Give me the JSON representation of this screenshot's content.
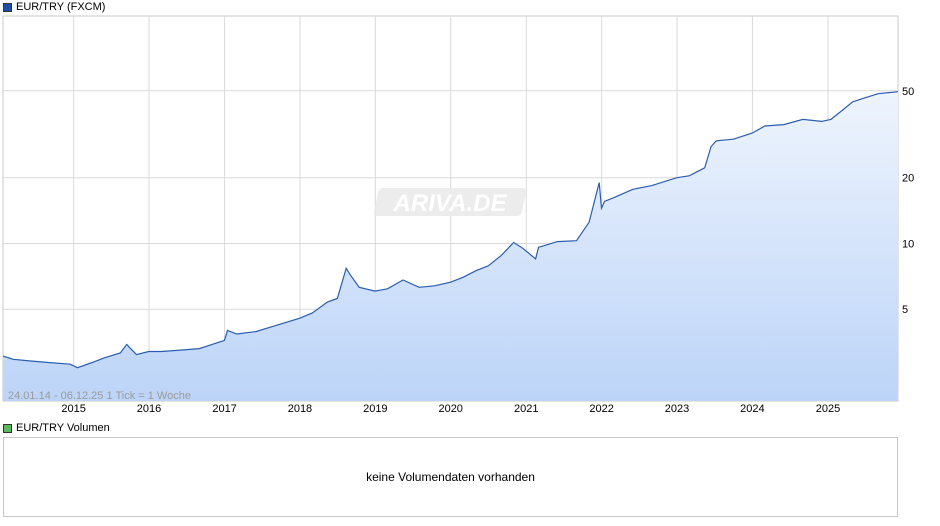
{
  "price_legend": {
    "label": "EUR/TRY (FXCM)",
    "color": "#1f4fa8"
  },
  "volume_legend": {
    "label": "EUR/TRY Volumen",
    "color": "#5cb85c"
  },
  "watermark": "ARIVA.DE",
  "range_label": "24.01.14 - 06.12.25    1 Tick = 1 Woche",
  "volume_message": "keine Volumendaten vorhanden",
  "colors": {
    "line": "#2a5db0",
    "fill_top": "#eef4fd",
    "fill_bottom": "#bcd4f8",
    "grid": "#d9d9d9"
  },
  "chart_data": {
    "type": "area",
    "title": "EUR/TRY (FXCM)",
    "xlabel": "",
    "ylabel": "",
    "y_scale": "log",
    "ylim": [
      1.9,
      110
    ],
    "xlim": [
      "2014-01-24",
      "2025-12-06"
    ],
    "y_ticks": [
      5,
      10,
      20,
      50
    ],
    "x_ticks": [
      "2015",
      "2016",
      "2017",
      "2018",
      "2019",
      "2020",
      "2021",
      "2022",
      "2023",
      "2024",
      "2025"
    ],
    "grid": true,
    "series": [
      {
        "name": "EUR/TRY (FXCM)",
        "points": [
          [
            "2014-01-24",
            3.05
          ],
          [
            "2014-03-15",
            2.95
          ],
          [
            "2014-06-01",
            2.9
          ],
          [
            "2014-09-01",
            2.85
          ],
          [
            "2014-12-15",
            2.8
          ],
          [
            "2015-01-20",
            2.7
          ],
          [
            "2015-04-01",
            2.85
          ],
          [
            "2015-06-01",
            3.0
          ],
          [
            "2015-08-15",
            3.15
          ],
          [
            "2015-09-15",
            3.45
          ],
          [
            "2015-11-01",
            3.1
          ],
          [
            "2015-12-31",
            3.2
          ],
          [
            "2016-03-01",
            3.2
          ],
          [
            "2016-06-01",
            3.25
          ],
          [
            "2016-09-01",
            3.3
          ],
          [
            "2016-12-31",
            3.6
          ],
          [
            "2017-01-15",
            4.0
          ],
          [
            "2017-03-01",
            3.85
          ],
          [
            "2017-06-01",
            3.95
          ],
          [
            "2017-09-01",
            4.2
          ],
          [
            "2017-12-31",
            4.55
          ],
          [
            "2018-03-01",
            4.8
          ],
          [
            "2018-05-15",
            5.4
          ],
          [
            "2018-07-01",
            5.6
          ],
          [
            "2018-08-13",
            7.7
          ],
          [
            "2018-09-01",
            7.2
          ],
          [
            "2018-10-15",
            6.3
          ],
          [
            "2018-12-31",
            6.05
          ],
          [
            "2019-03-01",
            6.2
          ],
          [
            "2019-05-15",
            6.8
          ],
          [
            "2019-08-01",
            6.3
          ],
          [
            "2019-10-15",
            6.4
          ],
          [
            "2019-12-31",
            6.65
          ],
          [
            "2020-03-01",
            7.0
          ],
          [
            "2020-05-01",
            7.5
          ],
          [
            "2020-07-01",
            7.9
          ],
          [
            "2020-09-01",
            8.8
          ],
          [
            "2020-11-01",
            10.1
          ],
          [
            "2020-12-15",
            9.5
          ],
          [
            "2021-02-15",
            8.5
          ],
          [
            "2021-03-01",
            9.6
          ],
          [
            "2021-06-01",
            10.2
          ],
          [
            "2021-09-01",
            10.3
          ],
          [
            "2021-11-01",
            12.5
          ],
          [
            "2021-12-20",
            19.0
          ],
          [
            "2021-12-31",
            14.5
          ],
          [
            "2022-01-15",
            15.6
          ],
          [
            "2022-03-01",
            16.2
          ],
          [
            "2022-06-01",
            17.7
          ],
          [
            "2022-09-01",
            18.4
          ],
          [
            "2022-12-31",
            20.0
          ],
          [
            "2023-03-01",
            20.4
          ],
          [
            "2023-05-15",
            22.2
          ],
          [
            "2023-06-15",
            27.8
          ],
          [
            "2023-07-10",
            29.5
          ],
          [
            "2023-10-01",
            30.0
          ],
          [
            "2023-12-31",
            32.0
          ],
          [
            "2024-03-01",
            34.5
          ],
          [
            "2024-06-01",
            35.0
          ],
          [
            "2024-09-01",
            37.0
          ],
          [
            "2024-12-01",
            36.2
          ],
          [
            "2025-01-15",
            37.0
          ],
          [
            "2025-03-01",
            40.0
          ],
          [
            "2025-05-01",
            44.5
          ],
          [
            "2025-07-01",
            46.5
          ],
          [
            "2025-09-01",
            48.5
          ],
          [
            "2025-12-06",
            49.5
          ]
        ]
      }
    ]
  }
}
